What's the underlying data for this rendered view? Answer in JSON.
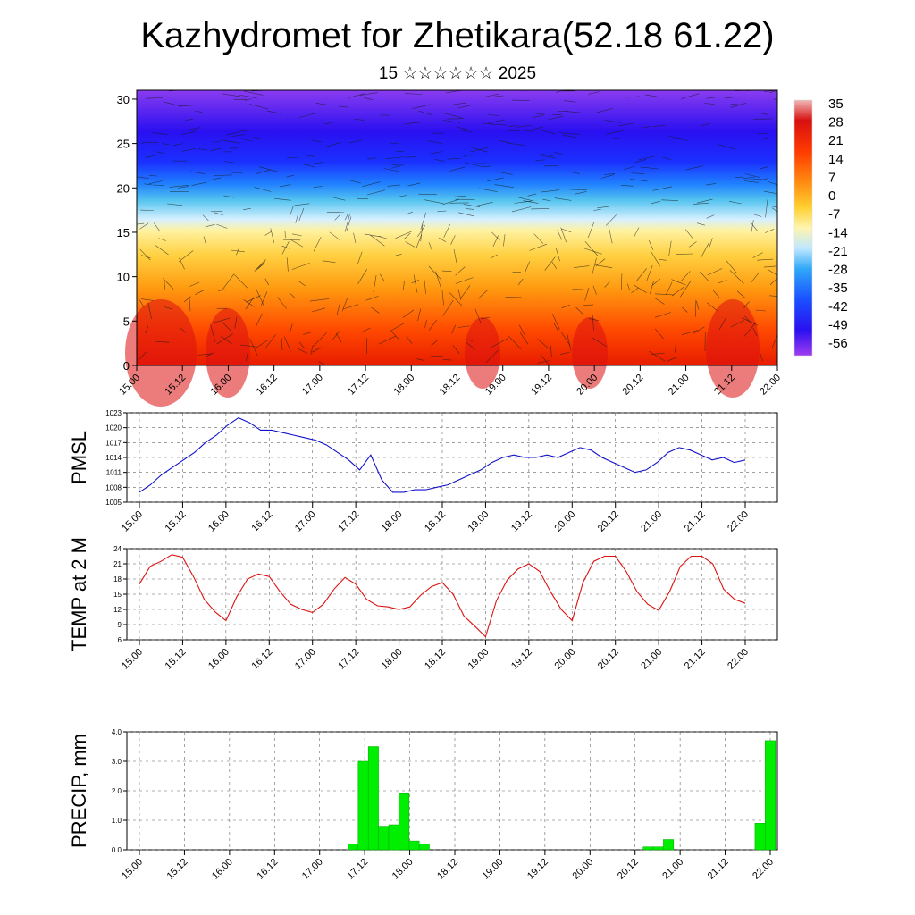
{
  "header": {
    "title": "Kazhydromet for Zhetikara(52.18 61.22)",
    "subtitle": "15 ☆☆☆☆☆☆ 2025"
  },
  "time_labels": [
    "15.00",
    "15.12",
    "16.00",
    "16.12",
    "17.00",
    "17.12",
    "18.00",
    "18.12",
    "19.00",
    "19.12",
    "20.00",
    "20.12",
    "21.00",
    "21.12",
    "22.00"
  ],
  "chart_data": [
    {
      "type": "heatmap",
      "description_axis": "height",
      "y_ticks": [
        0,
        5,
        10,
        15,
        20,
        25,
        30
      ],
      "ylim": [
        0,
        31
      ],
      "colorbar_labels": [
        "35",
        "28",
        "21",
        "14",
        "7",
        "0",
        "-7",
        "-14",
        "-21",
        "-28",
        "-35",
        "-42",
        "-49",
        "-56"
      ],
      "colors": {
        "warm": "#e61e00",
        "mid": "#ffe87a",
        "cold": "#3300ff"
      }
    },
    {
      "type": "line",
      "ylabel": "PMSL",
      "ylim": [
        1005,
        1023
      ],
      "y_ticks": [
        1005,
        1008,
        1011,
        1014,
        1017,
        1020,
        1023
      ],
      "color": "#1010cc",
      "values": [
        1007,
        1008.5,
        1010.5,
        1012,
        1013.5,
        1015,
        1017,
        1018.5,
        1020.5,
        1022,
        1021,
        1019.5,
        1019.5,
        1019,
        1018.5,
        1018,
        1017.5,
        1016.5,
        1015,
        1013.5,
        1011.5,
        1014.5,
        1009.5,
        1007,
        1007,
        1007.5,
        1007.5,
        1008,
        1008.5,
        1009.5,
        1010.5,
        1011.5,
        1013,
        1014,
        1014.5,
        1014,
        1014,
        1014.5,
        1014,
        1015,
        1016,
        1015.5,
        1014,
        1013,
        1012,
        1011,
        1011.5,
        1013,
        1015,
        1016,
        1015.5,
        1014.5,
        1013.5,
        1014,
        1013,
        1013.5
      ]
    },
    {
      "type": "line",
      "ylabel": "TEMP at 2 M",
      "ylim": [
        6,
        24
      ],
      "y_ticks": [
        6,
        9,
        12,
        15,
        18,
        21,
        24
      ],
      "color": "#dd1111",
      "values": [
        17,
        20.5,
        21.5,
        22.8,
        22.3,
        18.5,
        14,
        11.5,
        9.8,
        14.5,
        18,
        19,
        18.5,
        15.5,
        13,
        12,
        11.4,
        13,
        16,
        18.3,
        17,
        14,
        12.7,
        12.5,
        12,
        12.5,
        14.8,
        16.5,
        17.3,
        15,
        10.7,
        8.7,
        6.6,
        13.7,
        17.8,
        20,
        21,
        19.5,
        15.5,
        12,
        9.8,
        17.3,
        21.5,
        22.5,
        22.5,
        19.5,
        15.5,
        13,
        11.8,
        15.5,
        20.5,
        22.5,
        22.5,
        21,
        16,
        14,
        13.2
      ]
    },
    {
      "type": "bar",
      "ylabel": "PRECIP, mm",
      "ylim": [
        0,
        4
      ],
      "y_ticks": [
        "0.0",
        "1.0",
        "2.0",
        "3.0",
        "4.0"
      ],
      "color": "#00ee00",
      "values": [
        0,
        0,
        0,
        0,
        0,
        0,
        0,
        0,
        0,
        0,
        0,
        0,
        0,
        0,
        0,
        0,
        0,
        0,
        0,
        0,
        0,
        0.2,
        3,
        3.5,
        0.8,
        0.85,
        1.9,
        0.3,
        0.2,
        0,
        0,
        0,
        0,
        0,
        0,
        0,
        0,
        0,
        0,
        0,
        0,
        0,
        0,
        0,
        0,
        0,
        0,
        0,
        0,
        0,
        0.1,
        0.1,
        0.35,
        0,
        0,
        0,
        0,
        0,
        0,
        0,
        0,
        0.9,
        3.7
      ]
    }
  ]
}
